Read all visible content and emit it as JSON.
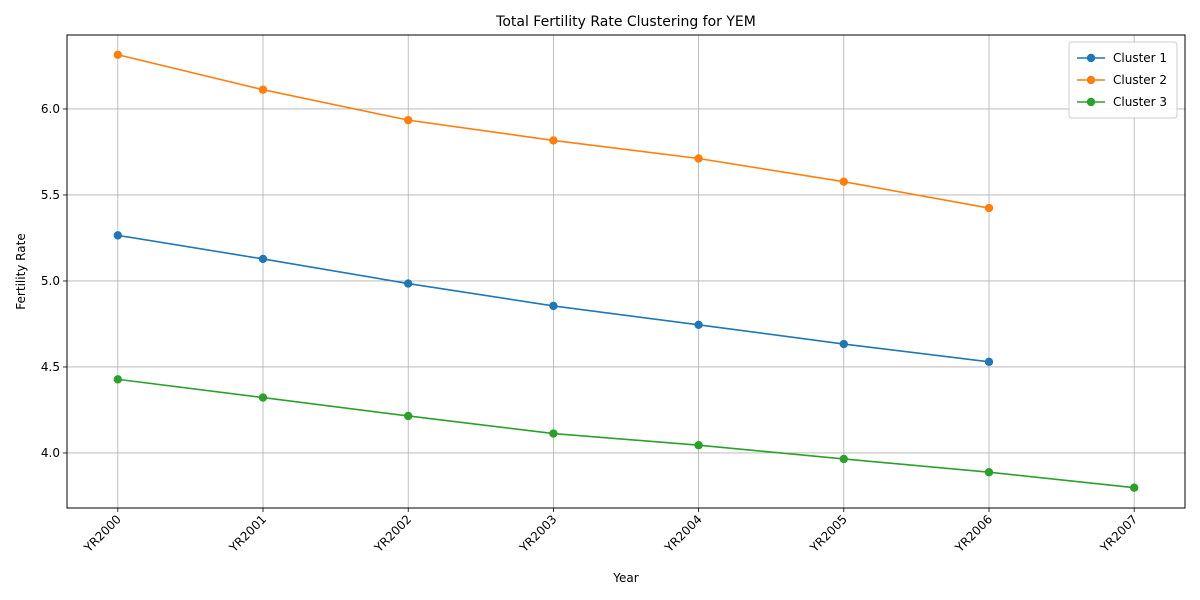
{
  "chart_data": {
    "type": "line",
    "title": "Total Fertility Rate Clustering for YEM",
    "xlabel": "Year",
    "ylabel": "Fertility Rate",
    "categories": [
      "YR2000",
      "YR2001",
      "YR2002",
      "YR2003",
      "YR2004",
      "YR2005",
      "YR2006",
      "YR2007"
    ],
    "y_ticks": [
      "4.0",
      "4.5",
      "5.0",
      "5.5",
      "6.0"
    ],
    "ylim": [
      3.68,
      6.43
    ],
    "grid": true,
    "legend_position": "top-right",
    "series": [
      {
        "name": "Cluster 1",
        "color": "#1f77b4",
        "values": [
          5.265,
          5.128,
          4.985,
          4.855,
          4.745,
          4.633,
          4.53,
          null
        ]
      },
      {
        "name": "Cluster 2",
        "color": "#ff7f0e",
        "values": [
          6.315,
          6.112,
          5.935,
          5.817,
          5.712,
          5.577,
          5.424,
          null
        ]
      },
      {
        "name": "Cluster 3",
        "color": "#2ca02c",
        "values": [
          4.428,
          4.322,
          4.215,
          4.113,
          4.045,
          3.965,
          3.888,
          3.798
        ]
      }
    ]
  }
}
